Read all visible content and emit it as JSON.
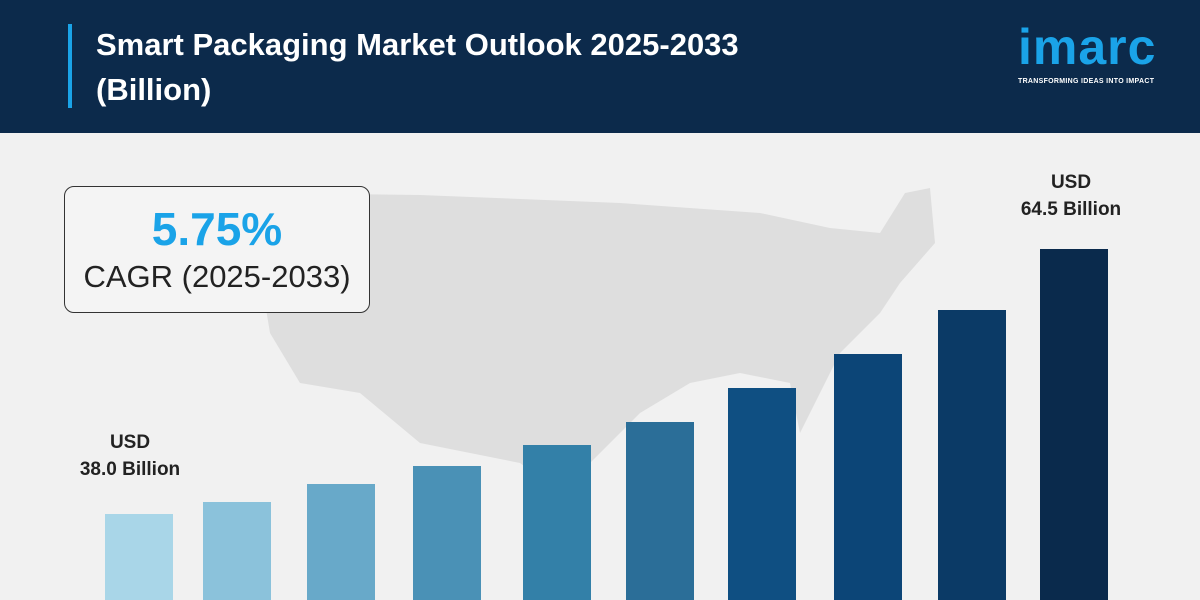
{
  "header": {
    "title": "Smart Packaging Market Outlook 2025-2033 (Billion)",
    "logo_text": "imarc",
    "logo_tagline": "TRANSFORMING IDEAS INTO IMPACT"
  },
  "cagr": {
    "value": "5.75%",
    "label": "CAGR (2025-2033)"
  },
  "colors": {
    "header": "#0c2a4b",
    "accent": "#1aa3e8",
    "background": "#f1f1f1"
  },
  "chart_data": {
    "type": "bar",
    "title": "Smart Packaging Market Outlook 2025-2033 (Billion)",
    "values": [
      38.0,
      39.2,
      41.0,
      42.8,
      44.9,
      47.2,
      50.6,
      54.0,
      58.4,
      64.5
    ],
    "colors": [
      "#a9d6e8",
      "#8bc2db",
      "#68a9c9",
      "#4a91b6",
      "#3380a8",
      "#2b6e98",
      "#0f4f82",
      "#0c4577",
      "#0b3a66",
      "#0a2a4c"
    ],
    "annotations": [
      {
        "line1": "USD",
        "line2": "38.0 Billion"
      },
      {
        "line1": "USD",
        "line2": "64.5 Billion"
      }
    ],
    "grid": false,
    "axes_visible": false
  }
}
